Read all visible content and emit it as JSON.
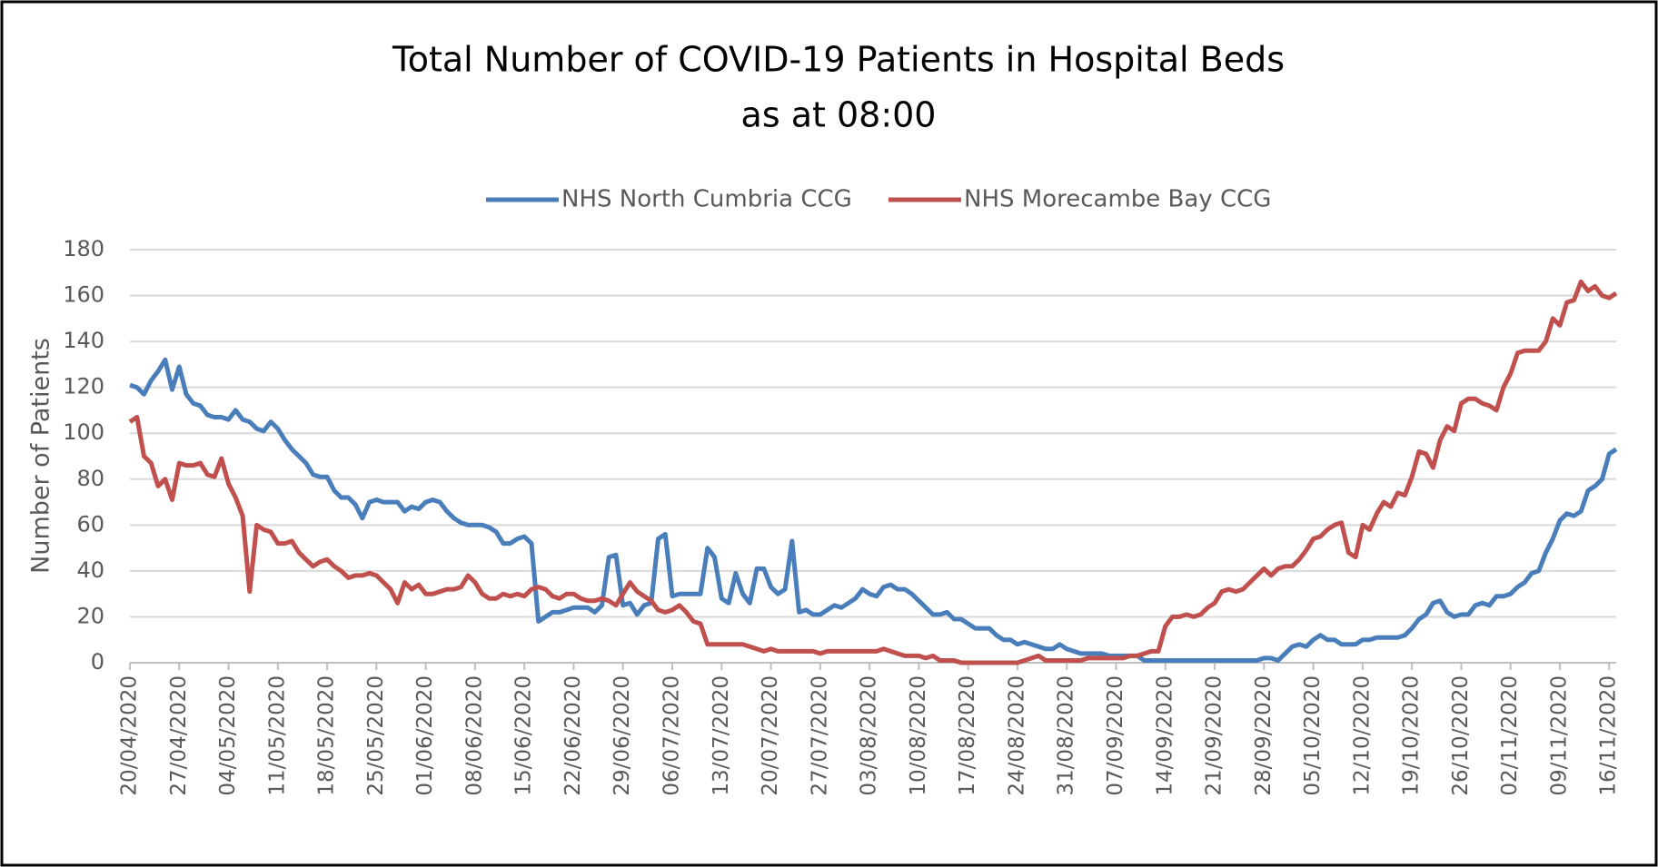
{
  "chart_data": {
    "type": "line",
    "title": "Total Number of COVID-19 Patients in Hospital Beds",
    "subtitle": "as at 08:00",
    "y_label": "Number of Patients",
    "ylim": [
      0,
      180
    ],
    "yticks": [
      0,
      20,
      40,
      60,
      80,
      100,
      120,
      140,
      160,
      180
    ],
    "grid": true,
    "legend": "top",
    "categories": [
      "20/04/2020",
      null,
      null,
      null,
      null,
      null,
      null,
      "27/04/2020",
      null,
      null,
      null,
      null,
      null,
      null,
      "04/05/2020",
      null,
      null,
      null,
      null,
      null,
      null,
      "11/05/2020",
      null,
      null,
      null,
      null,
      null,
      null,
      "18/05/2020",
      null,
      null,
      null,
      null,
      null,
      null,
      "25/05/2020",
      null,
      null,
      null,
      null,
      null,
      null,
      "01/06/2020",
      null,
      null,
      null,
      null,
      null,
      null,
      "08/06/2020",
      null,
      null,
      null,
      null,
      null,
      null,
      "15/06/2020",
      null,
      null,
      null,
      null,
      null,
      null,
      "22/06/2020",
      null,
      null,
      null,
      null,
      null,
      null,
      "29/06/2020",
      null,
      null,
      null,
      null,
      null,
      null,
      "06/07/2020",
      null,
      null,
      null,
      null,
      null,
      null,
      "13/07/2020",
      null,
      null,
      null,
      null,
      null,
      null,
      "20/07/2020",
      null,
      null,
      null,
      null,
      null,
      null,
      "27/07/2020",
      null,
      null,
      null,
      null,
      null,
      null,
      "03/08/2020",
      null,
      null,
      null,
      null,
      null,
      null,
      "10/08/2020",
      null,
      null,
      null,
      null,
      null,
      null,
      "17/08/2020",
      null,
      null,
      null,
      null,
      null,
      null,
      "24/08/2020",
      null,
      null,
      null,
      null,
      null,
      null,
      "31/08/2020",
      null,
      null,
      null,
      null,
      null,
      null,
      "07/09/2020",
      null,
      null,
      null,
      null,
      null,
      null,
      "14/09/2020",
      null,
      null,
      null,
      null,
      null,
      null,
      "21/09/2020",
      null,
      null,
      null,
      null,
      null,
      null,
      "28/09/2020",
      null,
      null,
      null,
      null,
      null,
      null,
      "05/10/2020",
      null,
      null,
      null,
      null,
      null,
      null,
      "12/10/2020",
      null,
      null,
      null,
      null,
      null,
      null,
      "19/10/2020",
      null,
      null,
      null,
      null,
      null,
      null,
      "26/10/2020",
      null,
      null,
      null,
      null,
      null,
      null,
      "02/11/2020",
      null,
      null,
      null,
      null,
      null,
      null,
      "09/11/2020",
      null,
      null,
      null,
      null,
      null,
      null,
      "16/11/2020",
      null
    ],
    "series": [
      {
        "name": "NHS North Cumbria CCG",
        "color": "#4a7ebb",
        "values": [
          121,
          120,
          117,
          123,
          127,
          132,
          119,
          129,
          117,
          113,
          112,
          108,
          107,
          107,
          106,
          110,
          106,
          105,
          102,
          101,
          105,
          102,
          97,
          93,
          90,
          87,
          82,
          81,
          81,
          75,
          72,
          72,
          69,
          63,
          70,
          71,
          70,
          70,
          70,
          66,
          68,
          67,
          70,
          71,
          70,
          66,
          63,
          61,
          60,
          60,
          60,
          59,
          57,
          52,
          52,
          54,
          55,
          52,
          18,
          20,
          22,
          22,
          23,
          24,
          24,
          24,
          22,
          25,
          46,
          47,
          25,
          26,
          21,
          25,
          26,
          54,
          56,
          29,
          30,
          30,
          30,
          30,
          50,
          46,
          28,
          26,
          39,
          30,
          26,
          41,
          41,
          33,
          30,
          32,
          53,
          22,
          23,
          21,
          21,
          23,
          25,
          24,
          26,
          28,
          32,
          30,
          29,
          33,
          34,
          32,
          32,
          30,
          27,
          24,
          21,
          21,
          22,
          19,
          19,
          17,
          15,
          15,
          15,
          12,
          10,
          10,
          8,
          9,
          8,
          7,
          6,
          6,
          8,
          6,
          5,
          4,
          4,
          4,
          4,
          3,
          3,
          3,
          3,
          3,
          1,
          1,
          1,
          1,
          1,
          1,
          1,
          1,
          1,
          1,
          1,
          1,
          1,
          1,
          1,
          1,
          1,
          2,
          2,
          1,
          4,
          7,
          8,
          7,
          10,
          12,
          10,
          10,
          8,
          8,
          8,
          10,
          10,
          11,
          11,
          11,
          11,
          12,
          15,
          19,
          21,
          26,
          27,
          22,
          20,
          21,
          21,
          25,
          26,
          25,
          29,
          29,
          30,
          33,
          35,
          39,
          40,
          48,
          54,
          62,
          65,
          64,
          66,
          75,
          77,
          80,
          91,
          93
        ]
      },
      {
        "name": "NHS Morecambe Bay CCG",
        "color": "#c0504d",
        "values": [
          105,
          107,
          90,
          87,
          77,
          80,
          71,
          87,
          86,
          86,
          87,
          82,
          81,
          89,
          78,
          72,
          64,
          31,
          60,
          58,
          57,
          52,
          52,
          53,
          48,
          45,
          42,
          44,
          45,
          42,
          40,
          37,
          38,
          38,
          39,
          38,
          35,
          32,
          26,
          35,
          32,
          34,
          30,
          30,
          31,
          32,
          32,
          33,
          38,
          35,
          30,
          28,
          28,
          30,
          29,
          30,
          29,
          32,
          33,
          32,
          29,
          28,
          30,
          30,
          28,
          27,
          27,
          28,
          27,
          25,
          30,
          35,
          31,
          29,
          27,
          23,
          22,
          23,
          25,
          22,
          18,
          17,
          8,
          8,
          8,
          8,
          8,
          8,
          7,
          6,
          5,
          6,
          5,
          5,
          5,
          5,
          5,
          5,
          4,
          5,
          5,
          5,
          5,
          5,
          5,
          5,
          5,
          6,
          5,
          4,
          3,
          3,
          3,
          2,
          3,
          1,
          1,
          1,
          0,
          0,
          0,
          0,
          0,
          0,
          0,
          0,
          0,
          1,
          2,
          3,
          1,
          1,
          1,
          1,
          1,
          1,
          2,
          2,
          2,
          2,
          2,
          2,
          3,
          3,
          4,
          5,
          5,
          16,
          20,
          20,
          21,
          20,
          21,
          24,
          26,
          31,
          32,
          31,
          32,
          35,
          38,
          41,
          38,
          41,
          42,
          42,
          45,
          49,
          54,
          55,
          58,
          60,
          61,
          48,
          46,
          60,
          58,
          65,
          70,
          68,
          74,
          73,
          81,
          92,
          91,
          85,
          97,
          103,
          101,
          113,
          115,
          115,
          113,
          112,
          110,
          120,
          126,
          135,
          136,
          136,
          136,
          140,
          150,
          147,
          157,
          158,
          166,
          162,
          164,
          160,
          159,
          161
        ]
      }
    ]
  }
}
